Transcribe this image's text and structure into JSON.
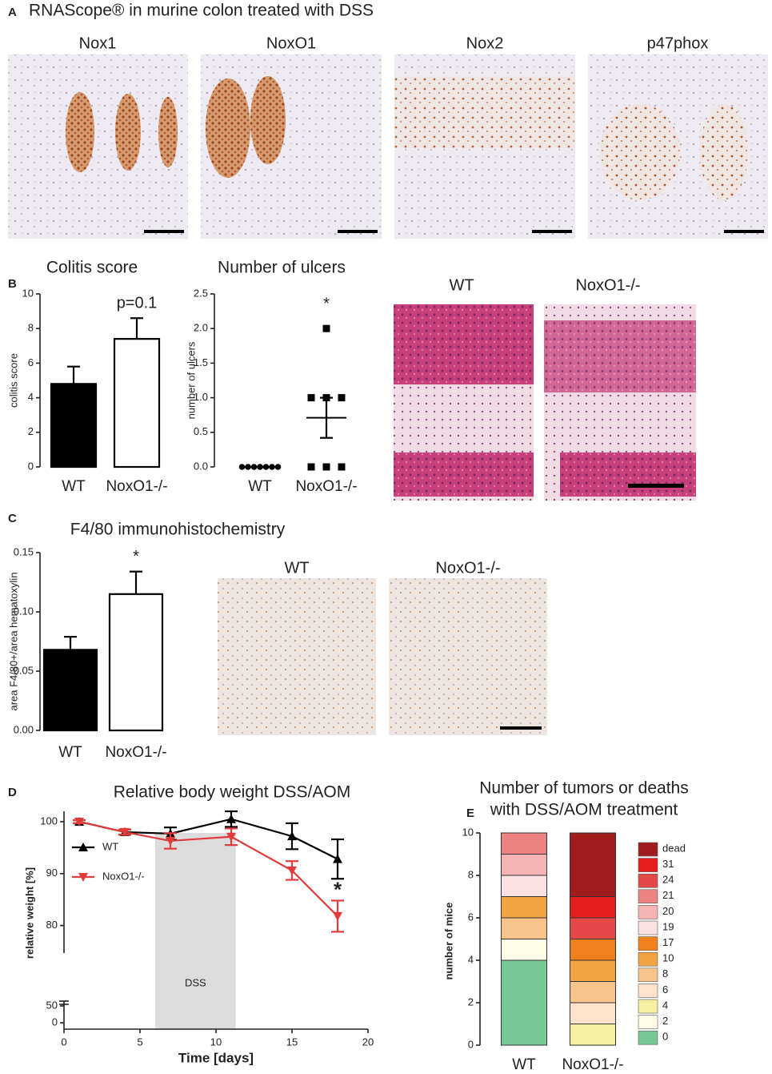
{
  "figure": {
    "panels": [
      {
        "letter": "A",
        "title": "RNAScope® in murine colon treated with DSS",
        "image_labels": [
          "Nox1",
          "NoxO1",
          "Nox2",
          "p47phox"
        ]
      },
      {
        "letter": "B",
        "image_labels": [
          "WT",
          "NoxO1-/-"
        ]
      },
      {
        "letter": "C",
        "image_labels": [
          "WT",
          "NoxO1-/-"
        ]
      },
      {
        "letter": "D"
      },
      {
        "letter": "E"
      }
    ]
  },
  "chart_data": [
    {
      "type": "bar",
      "title": "Colitis score",
      "ylabel": "colitis score",
      "categories": [
        "WT",
        "NoxO1-/-"
      ],
      "values": [
        4.8,
        7.4
      ],
      "errors": [
        1.0,
        1.2
      ],
      "colors": [
        "#000000",
        "#ffffff"
      ],
      "ylim": [
        0,
        10
      ],
      "yticks": [
        0,
        2,
        4,
        6,
        8,
        10
      ],
      "annotations": [
        {
          "text": "p=0.1",
          "index": 1
        }
      ]
    },
    {
      "type": "scatter",
      "title": "Number of ulcers",
      "ylabel": "number of ulcers",
      "categories": [
        "WT",
        "NoxO1-/-"
      ],
      "points": [
        [
          0,
          0,
          0,
          0,
          0,
          0,
          0
        ],
        [
          2,
          1,
          1,
          1,
          0,
          0,
          0
        ]
      ],
      "markers": [
        "circle",
        "square"
      ],
      "color": "#000000",
      "means": [
        0,
        0.71
      ],
      "errors": [
        0,
        0.29
      ],
      "ylim": [
        0,
        2.5
      ],
      "yticks": [
        {
          "value": 0,
          "label": "0.0"
        },
        {
          "value": 0.5,
          "label": "0.5"
        },
        {
          "value": 1,
          "label": "1.0"
        },
        {
          "value": 1.5,
          "label": "1.5"
        },
        {
          "value": 2,
          "label": "2.0"
        },
        {
          "value": 2.5,
          "label": "2.5"
        }
      ],
      "annotations": [
        {
          "text": "*",
          "index": 1
        }
      ]
    },
    {
      "type": "bar",
      "title": "F4/80 immunohistochemistry",
      "ylabel": "area F4/80+/area hematoxylin",
      "categories": [
        "WT",
        "NoxO1-/-"
      ],
      "values": [
        0.068,
        0.115
      ],
      "errors": [
        0.011,
        0.019
      ],
      "colors": [
        "#000000",
        "#ffffff"
      ],
      "ylim": [
        0,
        0.15
      ],
      "yticks": [
        {
          "value": 0,
          "label": "0.00"
        },
        {
          "value": 0.05,
          "label": "0.05"
        },
        {
          "value": 0.1,
          "label": "0.10"
        },
        {
          "value": 0.15,
          "label": "0.15"
        }
      ],
      "annotations": [
        {
          "text": "*",
          "index": 1
        }
      ]
    },
    {
      "type": "line",
      "title": "Relative body weight DSS/AOM",
      "xlabel": "Time [days]",
      "ylabel": "relative weight  [%]",
      "x": [
        1,
        4,
        7,
        11,
        15,
        18
      ],
      "series": [
        {
          "name": "WT",
          "color": "#000000",
          "marker": "triangle-up",
          "values": [
            100,
            98,
            97.7,
            100.5,
            97.2,
            92.8
          ],
          "errors": [
            0.3,
            0.5,
            1.2,
            1.5,
            2.5,
            3.8
          ]
        },
        {
          "name": "NoxO1-/-",
          "color": "#e03c3c",
          "marker": "triangle-down",
          "values": [
            100,
            98,
            96.3,
            97.1,
            90.6,
            81.8
          ],
          "errors": [
            0.3,
            0.5,
            1.5,
            1.6,
            1.8,
            3.0
          ]
        }
      ],
      "xlim": [
        0,
        20
      ],
      "xticks": [
        0,
        5,
        10,
        15,
        20
      ],
      "ylim": [
        0,
        102
      ],
      "y_break": [
        50,
        75
      ],
      "yticks": [
        0,
        50,
        80,
        90,
        100
      ],
      "shaded": {
        "label": "DSS",
        "x": [
          6,
          11.3
        ],
        "color": "#dcdcdc"
      },
      "annotations": [
        {
          "text": "*",
          "series": 1,
          "index": 5
        }
      ],
      "legend": "left"
    },
    {
      "type": "stacked_bar",
      "title": [
        "Number of tumors or deaths",
        "with DSS/AOM treatment"
      ],
      "ylabel": "number of mice",
      "categories": [
        "WT",
        "NoxO1-/-"
      ],
      "ylim": [
        0,
        10
      ],
      "yticks": [
        0,
        2,
        4,
        6,
        8,
        10
      ],
      "legend": "right",
      "series": [
        {
          "name": "0",
          "color": "#78c896",
          "values": [
            4,
            0
          ]
        },
        {
          "name": "2",
          "color": "#fffbe6",
          "values": [
            1,
            0
          ]
        },
        {
          "name": "4",
          "color": "#f7efa0",
          "values": [
            0,
            1
          ]
        },
        {
          "name": "6",
          "color": "#fde2cc",
          "values": [
            0,
            1
          ]
        },
        {
          "name": "8",
          "color": "#f7c58c",
          "values": [
            1,
            1
          ]
        },
        {
          "name": "10",
          "color": "#f2a443",
          "values": [
            1,
            1
          ]
        },
        {
          "name": "17",
          "color": "#ee801e",
          "values": [
            0,
            1
          ]
        },
        {
          "name": "19",
          "color": "#fbe1e1",
          "values": [
            1,
            0
          ]
        },
        {
          "name": "20",
          "color": "#f4b4b4",
          "values": [
            1,
            0
          ]
        },
        {
          "name": "21",
          "color": "#ec8282",
          "values": [
            1,
            0
          ]
        },
        {
          "name": "24",
          "color": "#e44848",
          "values": [
            0,
            1
          ]
        },
        {
          "name": "31",
          "color": "#e41e1e",
          "values": [
            0,
            1
          ]
        },
        {
          "name": "dead",
          "color": "#a11c1c",
          "values": [
            0,
            3
          ]
        }
      ]
    }
  ]
}
